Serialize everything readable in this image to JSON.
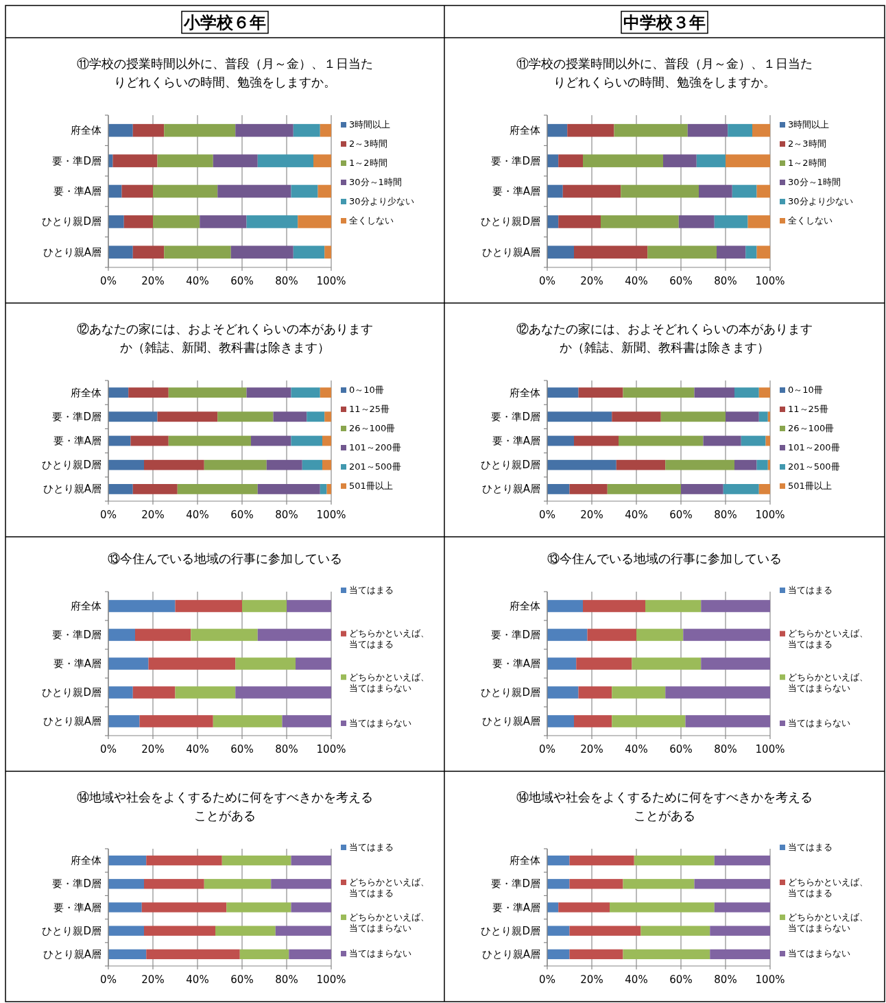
{
  "chart_data": [
    {
      "type": "bar",
      "orientation": "horizontal",
      "stacked": true,
      "subtitle": "小学校６年",
      "title": "⑪学校の授業時間以外に、普段（月～金）、１日当たりどれくらいの時間、勉強をしますか。",
      "categories": [
        "府全体",
        "要・準D層",
        "要・準A層",
        "ひとり親D層",
        "ひとり親A層"
      ],
      "series": [
        {
          "name": "3時間以上",
          "color": "#4572a7",
          "values": [
            11,
            2,
            6,
            7,
            11
          ]
        },
        {
          "name": "2～3時間",
          "color": "#aa4643",
          "values": [
            14,
            20,
            14,
            13,
            14
          ]
        },
        {
          "name": "1～2時間",
          "color": "#89a54e",
          "values": [
            32,
            25,
            29,
            21,
            30
          ]
        },
        {
          "name": "30分～1時間",
          "color": "#71588f",
          "values": [
            26,
            20,
            33,
            21,
            28
          ]
        },
        {
          "name": "30分より少ない",
          "color": "#4198af",
          "values": [
            12,
            25,
            12,
            23,
            14
          ]
        },
        {
          "name": "全くしない",
          "color": "#db843d",
          "values": [
            5,
            8,
            6,
            15,
            3
          ]
        }
      ],
      "xlim": [
        0,
        100
      ],
      "xticks": [
        {
          "value": 0,
          "label": "0%"
        },
        {
          "value": 20,
          "label": "20%"
        },
        {
          "value": 40,
          "label": "40%"
        },
        {
          "value": 60,
          "label": "60%"
        },
        {
          "value": 80,
          "label": "80%"
        },
        {
          "value": 100,
          "label": "100%"
        }
      ],
      "grid": "x",
      "legend": "right"
    },
    {
      "type": "bar",
      "orientation": "horizontal",
      "stacked": true,
      "subtitle": "中学校３年",
      "title": "⑪学校の授業時間以外に、普段（月～金）、１日当たりどれくらいの時間、勉強をしますか。",
      "categories": [
        "府全体",
        "要・準D層",
        "要・準A層",
        "ひとり親D層",
        "ひとり親A層"
      ],
      "series": [
        {
          "name": "3時間以上",
          "color": "#4572a7",
          "values": [
            9,
            5,
            7,
            5,
            12
          ]
        },
        {
          "name": "2～3時間",
          "color": "#aa4643",
          "values": [
            21,
            11,
            26,
            19,
            33
          ]
        },
        {
          "name": "1～2時間",
          "color": "#89a54e",
          "values": [
            33,
            36,
            35,
            35,
            31
          ]
        },
        {
          "name": "30分～1時間",
          "color": "#71588f",
          "values": [
            18,
            15,
            15,
            16,
            13
          ]
        },
        {
          "name": "30分より少ない",
          "color": "#4198af",
          "values": [
            11,
            13,
            11,
            15,
            5
          ]
        },
        {
          "name": "全くしない",
          "color": "#db843d",
          "values": [
            8,
            20,
            6,
            10,
            6
          ]
        }
      ],
      "xlim": [
        0,
        100
      ],
      "xticks": [
        {
          "value": 0,
          "label": "0%"
        },
        {
          "value": 20,
          "label": "20%"
        },
        {
          "value": 40,
          "label": "40%"
        },
        {
          "value": 60,
          "label": "60%"
        },
        {
          "value": 80,
          "label": "80%"
        },
        {
          "value": 100,
          "label": "100%"
        }
      ],
      "grid": "x",
      "legend": "right"
    },
    {
      "type": "bar",
      "orientation": "horizontal",
      "stacked": true,
      "title": "⑫あなたの家には、およそどれくらいの本がありますか（雑誌、新聞、教科書は除きます）",
      "categories": [
        "府全体",
        "要・準D層",
        "要・準A層",
        "ひとり親D層",
        "ひとり親A層"
      ],
      "series": [
        {
          "name": "0～10冊",
          "color": "#4572a7",
          "values": [
            9,
            22,
            10,
            16,
            11
          ]
        },
        {
          "name": "11～25冊",
          "color": "#aa4643",
          "values": [
            18,
            27,
            17,
            27,
            20
          ]
        },
        {
          "name": "26～100冊",
          "color": "#89a54e",
          "values": [
            35,
            25,
            37,
            28,
            36
          ]
        },
        {
          "name": "101～200冊",
          "color": "#71588f",
          "values": [
            20,
            15,
            18,
            16,
            28
          ]
        },
        {
          "name": "201～500冊",
          "color": "#4198af",
          "values": [
            13,
            8,
            14,
            9,
            3
          ]
        },
        {
          "name": "501冊以上",
          "color": "#db843d",
          "values": [
            5,
            3,
            4,
            4,
            2
          ]
        }
      ],
      "xlim": [
        0,
        100
      ],
      "xticks": [
        {
          "value": 0,
          "label": "0%"
        },
        {
          "value": 20,
          "label": "20%"
        },
        {
          "value": 40,
          "label": "40%"
        },
        {
          "value": 60,
          "label": "60%"
        },
        {
          "value": 80,
          "label": "80%"
        },
        {
          "value": 100,
          "label": "100%"
        }
      ],
      "grid": "x",
      "legend": "right"
    },
    {
      "type": "bar",
      "orientation": "horizontal",
      "stacked": true,
      "title": "⑫あなたの家には、およそどれくらいの本がありますか（雑誌、新聞、教科書は除きます）",
      "categories": [
        "府全体",
        "要・準D層",
        "要・準A層",
        "ひとり親D層",
        "ひとり親A層"
      ],
      "series": [
        {
          "name": "0～10冊",
          "color": "#4572a7",
          "values": [
            14,
            29,
            12,
            31,
            10
          ]
        },
        {
          "name": "11～25冊",
          "color": "#aa4643",
          "values": [
            20,
            22,
            20,
            22,
            17
          ]
        },
        {
          "name": "26～100冊",
          "color": "#89a54e",
          "values": [
            32,
            29,
            38,
            31,
            33
          ]
        },
        {
          "name": "101～200冊",
          "color": "#71588f",
          "values": [
            18,
            15,
            17,
            10,
            19
          ]
        },
        {
          "name": "201～500冊",
          "color": "#4198af",
          "values": [
            11,
            4,
            11,
            5,
            16
          ]
        },
        {
          "name": "501冊以上",
          "color": "#db843d",
          "values": [
            5,
            1,
            2,
            1,
            5
          ]
        }
      ],
      "xlim": [
        0,
        100
      ],
      "xticks": [
        {
          "value": 0,
          "label": "0%"
        },
        {
          "value": 20,
          "label": "20%"
        },
        {
          "value": 40,
          "label": "40%"
        },
        {
          "value": 60,
          "label": "60%"
        },
        {
          "value": 80,
          "label": "80%"
        },
        {
          "value": 100,
          "label": "100%"
        }
      ],
      "grid": "x",
      "legend": "right"
    },
    {
      "type": "bar",
      "orientation": "horizontal",
      "stacked": true,
      "title": "⑬今住んでいる地域の行事に参加している",
      "categories": [
        "府全体",
        "要・準D層",
        "要・準A層",
        "ひとり親D層",
        "ひとり親A層"
      ],
      "series": [
        {
          "name": "当てはまる",
          "color": "#4f81bd",
          "values": [
            30,
            12,
            18,
            11,
            14
          ]
        },
        {
          "name": "どちらかといえば、当てはまる",
          "color": "#c0504d",
          "values": [
            30,
            25,
            39,
            19,
            33
          ]
        },
        {
          "name": "どちらかといえば、当てはまらない",
          "color": "#9bbb59",
          "values": [
            20,
            30,
            27,
            27,
            31
          ]
        },
        {
          "name": "当てはまらない",
          "color": "#8064a2",
          "values": [
            20,
            33,
            16,
            43,
            22
          ]
        }
      ],
      "xlim": [
        0,
        100
      ],
      "xticks": [
        {
          "value": 0,
          "label": "0%"
        },
        {
          "value": 20,
          "label": "20%"
        },
        {
          "value": 40,
          "label": "40%"
        },
        {
          "value": 60,
          "label": "60%"
        },
        {
          "value": 80,
          "label": "80%"
        },
        {
          "value": 100,
          "label": "100%"
        }
      ],
      "grid": "x",
      "legend": "right"
    },
    {
      "type": "bar",
      "orientation": "horizontal",
      "stacked": true,
      "title": "⑬今住んでいる地域の行事に参加している",
      "categories": [
        "府全体",
        "要・準D層",
        "要・準A層",
        "ひとり親D層",
        "ひとり親A層"
      ],
      "series": [
        {
          "name": "当てはまる",
          "color": "#4f81bd",
          "values": [
            16,
            18,
            13,
            14,
            12
          ]
        },
        {
          "name": "どちらかといえば、当てはまる",
          "color": "#c0504d",
          "values": [
            28,
            22,
            25,
            15,
            17
          ]
        },
        {
          "name": "どちらかといえば、当てはまらない",
          "color": "#9bbb59",
          "values": [
            25,
            21,
            31,
            24,
            33
          ]
        },
        {
          "name": "当てはまらない",
          "color": "#8064a2",
          "values": [
            31,
            39,
            31,
            47,
            38
          ]
        }
      ],
      "xlim": [
        0,
        100
      ],
      "xticks": [
        {
          "value": 0,
          "label": "0%"
        },
        {
          "value": 20,
          "label": "20%"
        },
        {
          "value": 40,
          "label": "40%"
        },
        {
          "value": 60,
          "label": "60%"
        },
        {
          "value": 80,
          "label": "80%"
        },
        {
          "value": 100,
          "label": "100%"
        }
      ],
      "grid": "x",
      "legend": "right"
    },
    {
      "type": "bar",
      "orientation": "horizontal",
      "stacked": true,
      "title": "⑭地域や社会をよくするために何をすべきかを考えることがある",
      "categories": [
        "府全体",
        "要・準D層",
        "要・準A層",
        "ひとり親D層",
        "ひとり親A層"
      ],
      "series": [
        {
          "name": "当てはまる",
          "color": "#4f81bd",
          "values": [
            17,
            16,
            15,
            16,
            17
          ]
        },
        {
          "name": "どちらかといえば、当てはまる",
          "color": "#c0504d",
          "values": [
            34,
            27,
            38,
            32,
            42
          ]
        },
        {
          "name": "どちらかといえば、当てはまらない",
          "color": "#9bbb59",
          "values": [
            31,
            30,
            29,
            27,
            22
          ]
        },
        {
          "name": "当てはまらない",
          "color": "#8064a2",
          "values": [
            18,
            27,
            18,
            25,
            19
          ]
        }
      ],
      "xlim": [
        0,
        100
      ],
      "xticks": [
        {
          "value": 0,
          "label": "0%"
        },
        {
          "value": 20,
          "label": "20%"
        },
        {
          "value": 40,
          "label": "40%"
        },
        {
          "value": 60,
          "label": "60%"
        },
        {
          "value": 80,
          "label": "80%"
        },
        {
          "value": 100,
          "label": "100%"
        }
      ],
      "grid": "x",
      "legend": "right"
    },
    {
      "type": "bar",
      "orientation": "horizontal",
      "stacked": true,
      "title": "⑭地域や社会をよくするために何をすべきかを考えることがある",
      "categories": [
        "府全体",
        "要・準D層",
        "要・準A層",
        "ひとり親D層",
        "ひとり親A層"
      ],
      "series": [
        {
          "name": "当てはまる",
          "color": "#4f81bd",
          "values": [
            10,
            10,
            5,
            10,
            10
          ]
        },
        {
          "name": "どちらかといえば、当てはまる",
          "color": "#c0504d",
          "values": [
            29,
            24,
            23,
            32,
            24
          ]
        },
        {
          "name": "どちらかといえば、当てはまらない",
          "color": "#9bbb59",
          "values": [
            36,
            32,
            47,
            31,
            39
          ]
        },
        {
          "name": "当てはまらない",
          "color": "#8064a2",
          "values": [
            25,
            34,
            25,
            27,
            27
          ]
        }
      ],
      "xlim": [
        0,
        100
      ],
      "xticks": [
        {
          "value": 0,
          "label": "0%"
        },
        {
          "value": 20,
          "label": "20%"
        },
        {
          "value": 40,
          "label": "40%"
        },
        {
          "value": 60,
          "label": "60%"
        },
        {
          "value": 80,
          "label": "80%"
        },
        {
          "value": 100,
          "label": "100%"
        }
      ],
      "grid": "x",
      "legend": "right"
    }
  ]
}
